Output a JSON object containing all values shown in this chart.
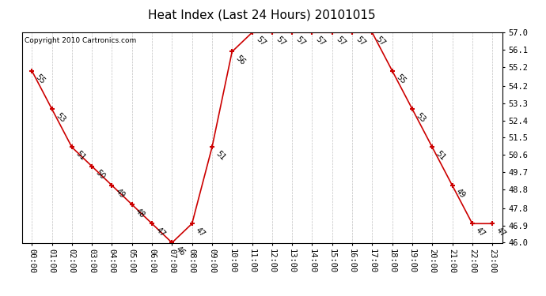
{
  "title": "Heat Index (Last 24 Hours) 20101015",
  "copyright": "Copyright 2010 Cartronics.com",
  "hours": [
    "00:00",
    "01:00",
    "02:00",
    "03:00",
    "04:00",
    "05:00",
    "06:00",
    "07:00",
    "08:00",
    "09:00",
    "10:00",
    "11:00",
    "12:00",
    "13:00",
    "14:00",
    "15:00",
    "16:00",
    "17:00",
    "18:00",
    "19:00",
    "20:00",
    "21:00",
    "22:00",
    "23:00"
  ],
  "values": [
    55,
    53,
    51,
    50,
    49,
    48,
    47,
    46,
    47,
    51,
    56,
    57,
    57,
    57,
    57,
    57,
    57,
    57,
    55,
    53,
    51,
    49,
    47,
    47
  ],
  "yticks": [
    57.0,
    56.1,
    55.2,
    54.2,
    53.3,
    52.4,
    51.5,
    50.6,
    49.7,
    48.8,
    47.8,
    46.9,
    46.0
  ],
  "ylim": [
    46.0,
    57.0
  ],
  "line_color": "#cc0000",
  "marker_color": "#cc0000",
  "bg_color": "#ffffff",
  "grid_color": "#bbbbbb",
  "title_fontsize": 11,
  "label_fontsize": 7,
  "copyright_fontsize": 6.5,
  "tick_fontsize": 7.5
}
